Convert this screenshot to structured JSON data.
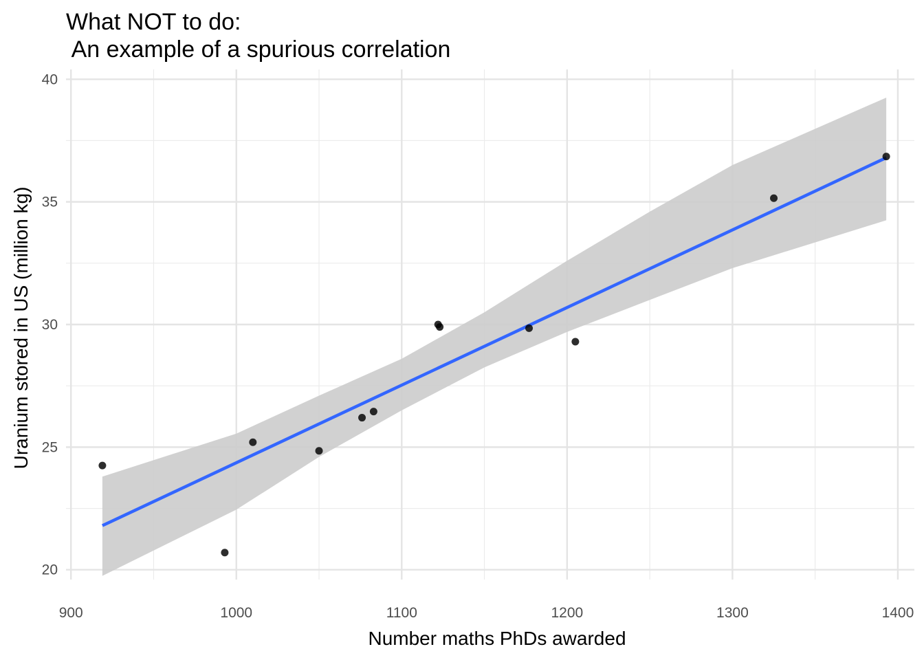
{
  "chart_data": {
    "type": "scatter",
    "title": "What NOT to do:",
    "subtitle": " An example of a spurious correlation",
    "xlabel": "Number maths PhDs awarded",
    "ylabel": "Uranium stored in US (million kg)",
    "xlim": [
      897,
      1410
    ],
    "ylim": [
      19.6,
      40.4
    ],
    "x_ticks": [
      "900",
      "1000",
      "1100",
      "1200",
      "1300",
      "1400"
    ],
    "y_ticks": [
      "20",
      "25",
      "30",
      "35",
      "40"
    ],
    "grid": true,
    "points": [
      {
        "x": 919,
        "y": 24.25
      },
      {
        "x": 993,
        "y": 20.7
      },
      {
        "x": 1010,
        "y": 25.2
      },
      {
        "x": 1050,
        "y": 24.85
      },
      {
        "x": 1076,
        "y": 26.2
      },
      {
        "x": 1083,
        "y": 26.45
      },
      {
        "x": 1122,
        "y": 30.0
      },
      {
        "x": 1123,
        "y": 29.9
      },
      {
        "x": 1177,
        "y": 29.85
      },
      {
        "x": 1205,
        "y": 29.3
      },
      {
        "x": 1325,
        "y": 35.15
      },
      {
        "x": 1393,
        "y": 36.85
      }
    ],
    "trend_line": {
      "method": "linear regression",
      "color": "#3366ff",
      "start": {
        "x": 919,
        "y": 21.8
      },
      "end": {
        "x": 1393,
        "y": 36.8
      }
    },
    "confidence_band": {
      "color": "#cccccc",
      "points": [
        {
          "x": 919,
          "lo": 19.75,
          "hi": 23.8
        },
        {
          "x": 1000,
          "lo": 22.45,
          "hi": 25.55
        },
        {
          "x": 1050,
          "lo": 24.6,
          "hi": 27.1
        },
        {
          "x": 1100,
          "lo": 26.5,
          "hi": 28.6
        },
        {
          "x": 1150,
          "lo": 28.25,
          "hi": 30.5
        },
        {
          "x": 1200,
          "lo": 29.7,
          "hi": 32.6
        },
        {
          "x": 1250,
          "lo": 31.0,
          "hi": 34.6
        },
        {
          "x": 1300,
          "lo": 32.3,
          "hi": 36.5
        },
        {
          "x": 1393,
          "lo": 34.25,
          "hi": 39.25
        }
      ]
    }
  }
}
